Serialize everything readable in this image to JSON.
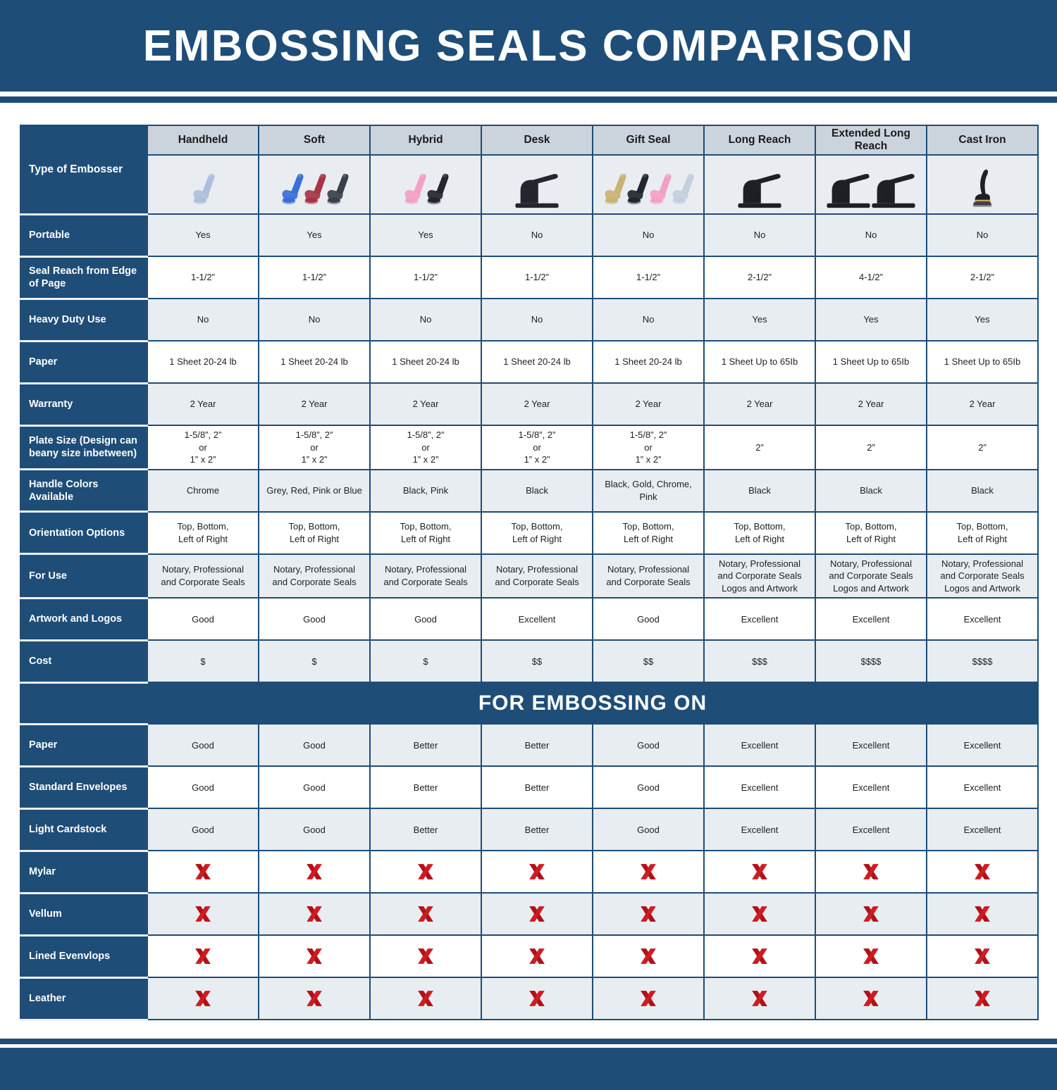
{
  "title": "EMBOSSING SEALS COMPARISON",
  "section_header": "FOR EMBOSSING ON",
  "colors": {
    "primary_blue": "#1e4d78",
    "header_cell_gray": "#cbd4dd",
    "light_row": "#e8edf2",
    "white_row": "#ffffff",
    "red_x": "#cf1b22"
  },
  "embossers": [
    {
      "name": "Handheld",
      "images": [
        {
          "icon": "handheld-embosser-icon",
          "shape": "plier",
          "color": "#aebedd"
        }
      ]
    },
    {
      "name": "Soft",
      "images": [
        {
          "icon": "soft-embosser-blue-icon",
          "shape": "plier",
          "color": "#3a6fd8"
        },
        {
          "icon": "soft-embosser-red-icon",
          "shape": "plier",
          "color": "#a83446"
        },
        {
          "icon": "soft-embosser-gray-icon",
          "shape": "plier",
          "color": "#3a3f4a"
        }
      ]
    },
    {
      "name": "Hybrid",
      "images": [
        {
          "icon": "hybrid-embosser-pink-icon",
          "shape": "plier",
          "color": "#f2a0c6"
        },
        {
          "icon": "hybrid-embosser-black-icon",
          "shape": "plier",
          "color": "#23262e"
        }
      ]
    },
    {
      "name": "Desk",
      "images": [
        {
          "icon": "desk-embosser-icon",
          "shape": "desk",
          "color": "#23262e"
        }
      ]
    },
    {
      "name": "Gift Seal",
      "images": [
        {
          "icon": "gift-seal-gold-icon",
          "shape": "plier",
          "color": "#c9b273"
        },
        {
          "icon": "gift-seal-black-icon",
          "shape": "plier",
          "color": "#23262e"
        },
        {
          "icon": "gift-seal-pink-icon",
          "shape": "plier",
          "color": "#f2a0c6"
        },
        {
          "icon": "gift-seal-chrome-icon",
          "shape": "plier",
          "color": "#c3cede"
        }
      ]
    },
    {
      "name": "Long Reach",
      "images": [
        {
          "icon": "long-reach-embosser-icon",
          "shape": "desk",
          "color": "#1d2025"
        }
      ]
    },
    {
      "name": "Extended Long Reach",
      "images": [
        {
          "icon": "extended-long-reach-embosser-icon",
          "shape": "desk",
          "color": "#1d2025"
        },
        {
          "icon": "extended-long-reach-embosser-icon",
          "shape": "desk",
          "color": "#1d2025"
        }
      ]
    },
    {
      "name": "Cast Iron",
      "images": [
        {
          "icon": "cast-iron-embosser-icon",
          "shape": "cast",
          "color": "#1d2025"
        }
      ]
    }
  ],
  "chart_data": {
    "type": "table",
    "title": "EMBOSSING SEALS COMPARISON",
    "row_label_header": "Type of Embosser",
    "column_headers": [
      "Handheld",
      "Soft",
      "Hybrid",
      "Desk",
      "Gift Seal",
      "Long Reach",
      "Extended Long Reach",
      "Cast Iron"
    ],
    "spec_rows": [
      {
        "label": "Portable",
        "values": [
          "Yes",
          "Yes",
          "Yes",
          "No",
          "No",
          "No",
          "No",
          "No"
        ]
      },
      {
        "label": "Seal Reach from Edge of Page",
        "values": [
          "1-1/2”",
          "1-1/2”",
          "1-1/2”",
          "1-1/2”",
          "1-1/2”",
          "2-1/2”",
          "4-1/2”",
          "2-1/2”"
        ]
      },
      {
        "label": "Heavy Duty Use",
        "values": [
          "No",
          "No",
          "No",
          "No",
          "No",
          "Yes",
          "Yes",
          "Yes"
        ]
      },
      {
        "label": "Paper",
        "values": [
          "1 Sheet 20-24 lb",
          "1 Sheet 20-24 lb",
          "1 Sheet 20-24 lb",
          "1 Sheet 20-24 lb",
          "1 Sheet 20-24 lb",
          "1 Sheet Up to 65Ib",
          "1 Sheet Up to 65Ib",
          "1 Sheet Up to 65Ib"
        ]
      },
      {
        "label": "Warranty",
        "values": [
          "2 Year",
          "2 Year",
          "2 Year",
          "2 Year",
          "2 Year",
          "2 Year",
          "2 Year",
          "2 Year"
        ]
      },
      {
        "label": "Plate Size (Design can beany size inbetween)",
        "values": [
          "1-5/8”, 2”\nor\n1” x 2”",
          "1-5/8”, 2”\nor\n1” x 2”",
          "1-5/8”, 2”\nor\n1” x 2”",
          "1-5/8”, 2”\nor\n1” x 2”",
          "1-5/8”, 2”\nor\n1” x 2”",
          "2”",
          "2”",
          "2”"
        ]
      },
      {
        "label": "Handle Colors Available",
        "values": [
          "Chrome",
          "Grey, Red, Pink or Blue",
          "Black, Pink",
          "Black",
          "Black, Gold, Chrome, Pink",
          "Black",
          "Black",
          "Black"
        ]
      },
      {
        "label": "Orientation Options",
        "values": [
          "Top, Bottom,\nLeft of Right",
          "Top, Bottom,\nLeft of Right",
          "Top, Bottom,\nLeft of Right",
          "Top, Bottom,\nLeft of Right",
          "Top, Bottom,\nLeft of Right",
          "Top, Bottom,\nLeft of Right",
          "Top, Bottom,\nLeft of Right",
          "Top, Bottom,\nLeft of Right"
        ]
      },
      {
        "label": "For Use",
        "values": [
          "Notary, Professional\nand Corporate Seals",
          "Notary, Professional\nand Corporate Seals",
          "Notary, Professional\nand Corporate Seals",
          "Notary, Professional\nand Corporate Seals",
          "Notary, Professional\nand Corporate Seals",
          "Notary, Professional\nand Corporate Seals\nLogos and Artwork",
          "Notary, Professional\nand Corporate Seals\nLogos and Artwork",
          "Notary, Professional\nand Corporate Seals\nLogos and Artwork"
        ]
      },
      {
        "label": "Artwork and Logos",
        "values": [
          "Good",
          "Good",
          "Good",
          "Excellent",
          "Good",
          "Excellent",
          "Excellent",
          "Excellent"
        ]
      },
      {
        "label": "Cost",
        "values": [
          "$",
          "$",
          "$",
          "$$",
          "$$",
          "$$$",
          "$$$$",
          "$$$$"
        ]
      }
    ],
    "section_header": "FOR EMBOSSING ON",
    "embossing_rows": [
      {
        "label": "Paper",
        "values": [
          "Good",
          "Good",
          "Better",
          "Better",
          "Good",
          "Excellent",
          "Excellent",
          "Excellent"
        ]
      },
      {
        "label": "Standard Envelopes",
        "values": [
          "Good",
          "Good",
          "Better",
          "Better",
          "Good",
          "Excellent",
          "Excellent",
          "Excellent"
        ]
      },
      {
        "label": "Light Cardstock",
        "values": [
          "Good",
          "Good",
          "Better",
          "Better",
          "Good",
          "Excellent",
          "Excellent",
          "Excellent"
        ]
      },
      {
        "label": "Mylar",
        "icon": "red-x-icon",
        "values": [
          "✗",
          "✗",
          "✗",
          "✗",
          "✗",
          "✗",
          "✗",
          "✗"
        ]
      },
      {
        "label": "Vellum",
        "icon": "red-x-icon",
        "values": [
          "✗",
          "✗",
          "✗",
          "✗",
          "✗",
          "✗",
          "✗",
          "✗"
        ]
      },
      {
        "label": "Lined Evenvlops",
        "icon": "red-x-icon",
        "values": [
          "✗",
          "✗",
          "✗",
          "✗",
          "✗",
          "✗",
          "✗",
          "✗"
        ]
      },
      {
        "label": "Leather",
        "icon": "red-x-icon",
        "values": [
          "✗",
          "✗",
          "✗",
          "✗",
          "✗",
          "✗",
          "✗",
          "✗"
        ]
      }
    ]
  }
}
